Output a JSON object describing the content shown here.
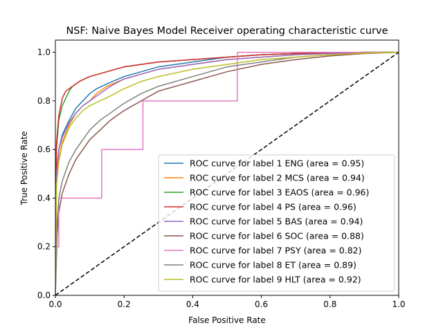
{
  "chart_data": {
    "type": "line",
    "title": "NSF: Naive Bayes Model Receiver operating characteristic curve",
    "xlabel": "False Positive Rate",
    "ylabel": "True Positive Rate",
    "xlim": [
      0,
      1
    ],
    "ylim": [
      0,
      1.05
    ],
    "xticks": [
      "0.0",
      "0.2",
      "0.4",
      "0.6",
      "0.8",
      "1.0"
    ],
    "yticks": [
      "0.0",
      "0.2",
      "0.4",
      "0.6",
      "0.8",
      "1.0"
    ],
    "grid": false,
    "legend_position": "lower-right",
    "diagonal": {
      "x": [
        0,
        1
      ],
      "y": [
        0,
        1
      ],
      "color": "#000000",
      "style": "dashed"
    },
    "series": [
      {
        "name": "ROC curve for label 1 ENG (area = 0.95)",
        "color": "#1f77b4",
        "x": [
          0,
          0.003,
          0.01,
          0.02,
          0.04,
          0.06,
          0.08,
          0.1,
          0.12,
          0.15,
          0.2,
          0.25,
          0.3,
          0.4,
          0.5,
          0.6,
          0.7,
          0.8,
          0.9,
          1
        ],
        "y": [
          0,
          0.5,
          0.6,
          0.66,
          0.72,
          0.77,
          0.8,
          0.83,
          0.85,
          0.87,
          0.9,
          0.92,
          0.94,
          0.96,
          0.98,
          0.99,
          0.995,
          0.998,
          1,
          1
        ]
      },
      {
        "name": "ROC curve for label 2 MCS (area = 0.94)",
        "color": "#ff7f0e",
        "x": [
          0,
          0.003,
          0.01,
          0.02,
          0.04,
          0.06,
          0.08,
          0.1,
          0.12,
          0.15,
          0.2,
          0.25,
          0.3,
          0.4,
          0.5,
          0.6,
          0.7,
          0.8,
          0.9,
          1
        ],
        "y": [
          0,
          0.45,
          0.56,
          0.63,
          0.7,
          0.75,
          0.78,
          0.8,
          0.83,
          0.86,
          0.89,
          0.91,
          0.93,
          0.95,
          0.97,
          0.98,
          0.99,
          0.995,
          1,
          1
        ]
      },
      {
        "name": "ROC curve for label 3 EAOS (area = 0.96)",
        "color": "#2ca02c",
        "x": [
          0,
          0.003,
          0.01,
          0.02,
          0.03,
          0.04,
          0.05,
          0.07,
          0.1,
          0.15,
          0.2,
          0.25,
          0.3,
          0.4,
          0.5,
          0.6,
          0.7,
          0.8,
          0.9,
          1
        ],
        "y": [
          0,
          0.6,
          0.72,
          0.78,
          0.81,
          0.84,
          0.86,
          0.88,
          0.9,
          0.92,
          0.94,
          0.95,
          0.96,
          0.97,
          0.98,
          0.99,
          0.995,
          0.998,
          1,
          1
        ]
      },
      {
        "name": "ROC curve for label 4 PS (area = 0.96)",
        "color": "#d62728",
        "x": [
          0,
          0.003,
          0.01,
          0.02,
          0.03,
          0.05,
          0.07,
          0.1,
          0.15,
          0.2,
          0.25,
          0.3,
          0.4,
          0.5,
          0.6,
          0.7,
          0.8,
          0.9,
          1
        ],
        "y": [
          0,
          0.62,
          0.74,
          0.81,
          0.84,
          0.86,
          0.88,
          0.9,
          0.92,
          0.94,
          0.95,
          0.96,
          0.97,
          0.98,
          0.99,
          0.995,
          0.998,
          1,
          1
        ]
      },
      {
        "name": "ROC curve for label 5 BAS (area = 0.94)",
        "color": "#9467bd",
        "x": [
          0,
          0.003,
          0.01,
          0.02,
          0.04,
          0.06,
          0.08,
          0.1,
          0.13,
          0.16,
          0.2,
          0.25,
          0.3,
          0.4,
          0.5,
          0.6,
          0.7,
          0.8,
          0.9,
          1
        ],
        "y": [
          0,
          0.5,
          0.6,
          0.65,
          0.71,
          0.75,
          0.78,
          0.8,
          0.83,
          0.86,
          0.89,
          0.91,
          0.93,
          0.95,
          0.97,
          0.98,
          0.99,
          0.995,
          1,
          1
        ]
      },
      {
        "name": "ROC curve for label 6 SOC (area = 0.88)",
        "color": "#8c564b",
        "x": [
          0,
          0.005,
          0.01,
          0.02,
          0.04,
          0.06,
          0.08,
          0.1,
          0.13,
          0.16,
          0.2,
          0.25,
          0.3,
          0.35,
          0.4,
          0.45,
          0.5,
          0.6,
          0.7,
          0.8,
          0.9,
          1
        ],
        "y": [
          0,
          0.25,
          0.34,
          0.42,
          0.5,
          0.56,
          0.6,
          0.64,
          0.68,
          0.72,
          0.76,
          0.8,
          0.84,
          0.86,
          0.88,
          0.9,
          0.92,
          0.95,
          0.97,
          0.985,
          0.995,
          1
        ]
      },
      {
        "name": "ROC curve for label 7 PSY (area = 0.82)",
        "color": "#e377c2",
        "x": [
          0,
          0,
          0.01,
          0.01,
          0.135,
          0.135,
          0.255,
          0.255,
          0.53,
          0.53,
          1
        ],
        "y": [
          0,
          0.2,
          0.2,
          0.4,
          0.4,
          0.6,
          0.6,
          0.8,
          0.8,
          1,
          1
        ]
      },
      {
        "name": "ROC curve for label 8 ET (area = 0.89)",
        "color": "#7f7f7f",
        "x": [
          0,
          0.005,
          0.01,
          0.02,
          0.04,
          0.06,
          0.08,
          0.1,
          0.13,
          0.16,
          0.2,
          0.25,
          0.3,
          0.35,
          0.4,
          0.45,
          0.5,
          0.6,
          0.7,
          0.8,
          0.9,
          1
        ],
        "y": [
          0,
          0.3,
          0.4,
          0.47,
          0.55,
          0.6,
          0.64,
          0.68,
          0.72,
          0.75,
          0.79,
          0.83,
          0.86,
          0.88,
          0.9,
          0.92,
          0.94,
          0.96,
          0.98,
          0.99,
          0.997,
          1
        ]
      },
      {
        "name": "ROC curve for label 9 HLT (area = 0.92)",
        "color": "#bcbd22",
        "x": [
          0,
          0.003,
          0.01,
          0.02,
          0.04,
          0.06,
          0.08,
          0.1,
          0.13,
          0.16,
          0.2,
          0.25,
          0.3,
          0.4,
          0.5,
          0.6,
          0.7,
          0.8,
          0.9,
          1
        ],
        "y": [
          0,
          0.45,
          0.55,
          0.62,
          0.69,
          0.73,
          0.76,
          0.78,
          0.8,
          0.82,
          0.85,
          0.88,
          0.9,
          0.93,
          0.95,
          0.97,
          0.98,
          0.99,
          0.997,
          1
        ]
      }
    ]
  }
}
